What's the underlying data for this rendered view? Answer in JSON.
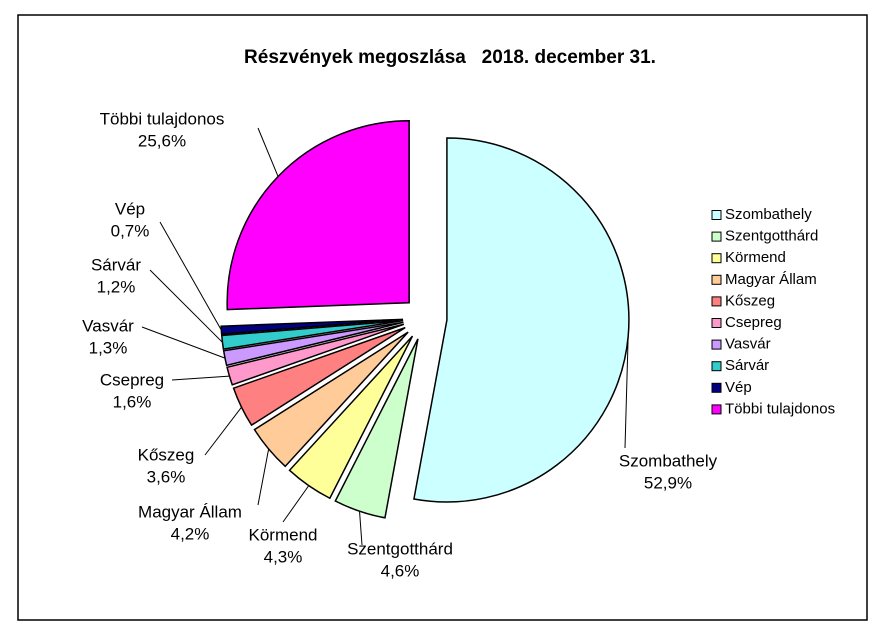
{
  "chart_data": {
    "type": "pie",
    "title": "Részvények megoszlása   2018. december 31.",
    "categories": [
      "Szombathely",
      "Szentgotthárd",
      "Körmend",
      "Magyar Állam",
      "Kőszeg",
      "Csepreg",
      "Vasvár",
      "Sárvár",
      "Vép",
      "Többi tulajdonos"
    ],
    "values": [
      52.9,
      4.6,
      4.3,
      4.2,
      3.6,
      1.6,
      1.3,
      1.2,
      0.7,
      25.6
    ],
    "value_labels": [
      "52,9%",
      "4,6%",
      "4,3%",
      "4,2%",
      "3,6%",
      "1,6%",
      "1,3%",
      "1,2%",
      "0,7%",
      "25,6%"
    ],
    "colors": [
      "#ccffff",
      "#ccffcc",
      "#ffff99",
      "#ffcc99",
      "#ff8080",
      "#ff99cc",
      "#cc99ff",
      "#33cccc",
      "#000080",
      "#ff00ff"
    ],
    "legend": "right"
  }
}
